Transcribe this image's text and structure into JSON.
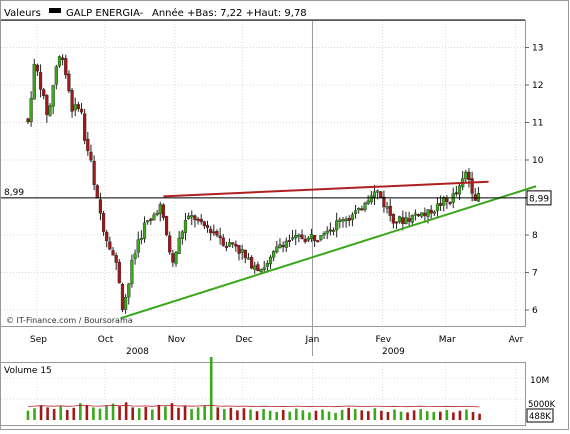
{
  "header": {
    "label": "Valeurs",
    "series_name": "GALP ENERGIA-",
    "stats": "Année +Bas: 7,22 +Haut: 9,78"
  },
  "chart_data": [
    {
      "type": "candlestick",
      "title": "",
      "xlabel": "",
      "ylabel": "",
      "ylim": [
        5.6,
        13.9
      ],
      "x_tick_labels": [
        "Sep",
        "Oct",
        "Nov",
        "Dec",
        "Jan",
        "Fev",
        "Mar",
        "Avr"
      ],
      "year_labels": [
        "2008",
        "2009"
      ],
      "y_ticks": [
        6,
        7,
        8,
        9,
        10,
        11,
        12,
        13
      ],
      "grid": true,
      "reference_line": {
        "value": 8.99,
        "label": "8,99",
        "right_badge": "8,99"
      },
      "trendlines": [
        {
          "color": "#b02020",
          "points": [
            [
              "Oct 27",
              9.03
            ],
            [
              "Mar 20",
              9.42
            ]
          ]
        },
        {
          "color": "#3aa81a",
          "points": [
            [
              "Oct 8",
              5.78
            ],
            [
              "Apr 10",
              9.3
            ]
          ]
        }
      ],
      "up_color": "#3aa81a",
      "down_color": "#a01818",
      "anchors": [
        [
          "Aug 28",
          11.0
        ],
        [
          "Aug 31",
          12.6
        ],
        [
          "Sep 3",
          11.9
        ],
        [
          "Sep 6",
          11.1
        ],
        [
          "Sep 9",
          12.4
        ],
        [
          "Sep 12",
          12.9
        ],
        [
          "Sep 15",
          11.9
        ],
        [
          "Sep 17",
          11.2
        ],
        [
          "Sep 20",
          11.6
        ],
        [
          "Sep 22",
          10.6
        ],
        [
          "Sep 25",
          9.9
        ],
        [
          "Sep 27",
          9.0
        ],
        [
          "Sep 29",
          8.6
        ],
        [
          "Oct 1",
          8.0
        ],
        [
          "Oct 4",
          7.6
        ],
        [
          "Oct 7",
          7.0
        ],
        [
          "Oct 9",
          6.1
        ],
        [
          "Oct 11",
          6.5
        ],
        [
          "Oct 13",
          7.2
        ],
        [
          "Oct 16",
          7.9
        ],
        [
          "Oct 19",
          8.3
        ],
        [
          "Oct 22",
          8.4
        ],
        [
          "Oct 25",
          8.9
        ],
        [
          "Oct 28",
          8.1
        ],
        [
          "Oct 31",
          7.2
        ],
        [
          "Nov 3",
          7.9
        ],
        [
          "Nov 6",
          8.4
        ],
        [
          "Nov 9",
          8.5
        ],
        [
          "Nov 12",
          8.3
        ],
        [
          "Nov 15",
          8.2
        ],
        [
          "Nov 18",
          8.1
        ],
        [
          "Nov 21",
          7.95
        ],
        [
          "Nov 24",
          7.75
        ],
        [
          "Nov 27",
          7.8
        ],
        [
          "Nov 30",
          7.6
        ],
        [
          "Dec 3",
          7.3
        ],
        [
          "Dec 6",
          7.25
        ],
        [
          "Dec 9",
          7.1
        ],
        [
          "Dec 12",
          7.2
        ],
        [
          "Dec 15",
          7.5
        ],
        [
          "Dec 18",
          7.8
        ],
        [
          "Dec 21",
          7.85
        ],
        [
          "Dec 24",
          7.9
        ],
        [
          "Dec 27",
          7.95
        ],
        [
          "Dec 30",
          7.9
        ],
        [
          "Jan 3",
          8.0
        ],
        [
          "Jan 6",
          8.15
        ],
        [
          "Jan 9",
          8.2
        ],
        [
          "Jan 12",
          8.3
        ],
        [
          "Jan 15",
          8.5
        ],
        [
          "Jan 18",
          8.5
        ],
        [
          "Jan 21",
          8.6
        ],
        [
          "Jan 24",
          8.9
        ],
        [
          "Jan 27",
          9.1
        ],
        [
          "Jan 30",
          9.15
        ],
        [
          "Feb 2",
          8.8
        ],
        [
          "Feb 5",
          8.5
        ],
        [
          "Feb 8",
          8.4
        ],
        [
          "Feb 11",
          8.45
        ],
        [
          "Feb 14",
          8.5
        ],
        [
          "Feb 17",
          8.6
        ],
        [
          "Feb 20",
          8.55
        ],
        [
          "Feb 23",
          8.65
        ],
        [
          "Feb 26",
          8.8
        ],
        [
          "Mar 1",
          8.85
        ],
        [
          "Mar 4",
          9.0
        ],
        [
          "Mar 7",
          9.2
        ],
        [
          "Mar 10",
          9.65
        ],
        [
          "Mar 12",
          9.4
        ],
        [
          "Mar 14",
          9.0
        ],
        [
          "Mar 16",
          9.0
        ]
      ]
    },
    {
      "type": "bar",
      "title": "Volume 15",
      "y_tick_labels": [
        "10M",
        "5000K"
      ],
      "last_value_badge": "488K",
      "ylim": [
        0,
        16
      ],
      "volume_profile": [
        2.2,
        2.8,
        3.5,
        3.0,
        2.6,
        3.2,
        2.4,
        2.9,
        4.0,
        3.6,
        3.0,
        2.7,
        3.4,
        3.9,
        3.3,
        4.2,
        3.0,
        2.8,
        3.1,
        2.5,
        3.6,
        3.2,
        4.0,
        2.9,
        3.3,
        2.6,
        3.0,
        3.4,
        15.0,
        3.0,
        2.6,
        2.9,
        2.3,
        2.8,
        2.5,
        2.1,
        2.6,
        2.2,
        1.9,
        2.4,
        2.0,
        2.7,
        2.3,
        1.8,
        2.2,
        2.5,
        2.0,
        1.7,
        2.4,
        2.9,
        2.6,
        2.3,
        2.1,
        2.8,
        2.2,
        1.9,
        2.5,
        2.0,
        1.8,
        2.3,
        2.6,
        2.1,
        1.9,
        2.0,
        2.4,
        1.8,
        2.2,
        2.5,
        1.9,
        1.5
      ]
    }
  ],
  "watermark": {
    "text": "© IT-Finance.com / Boursorama"
  }
}
